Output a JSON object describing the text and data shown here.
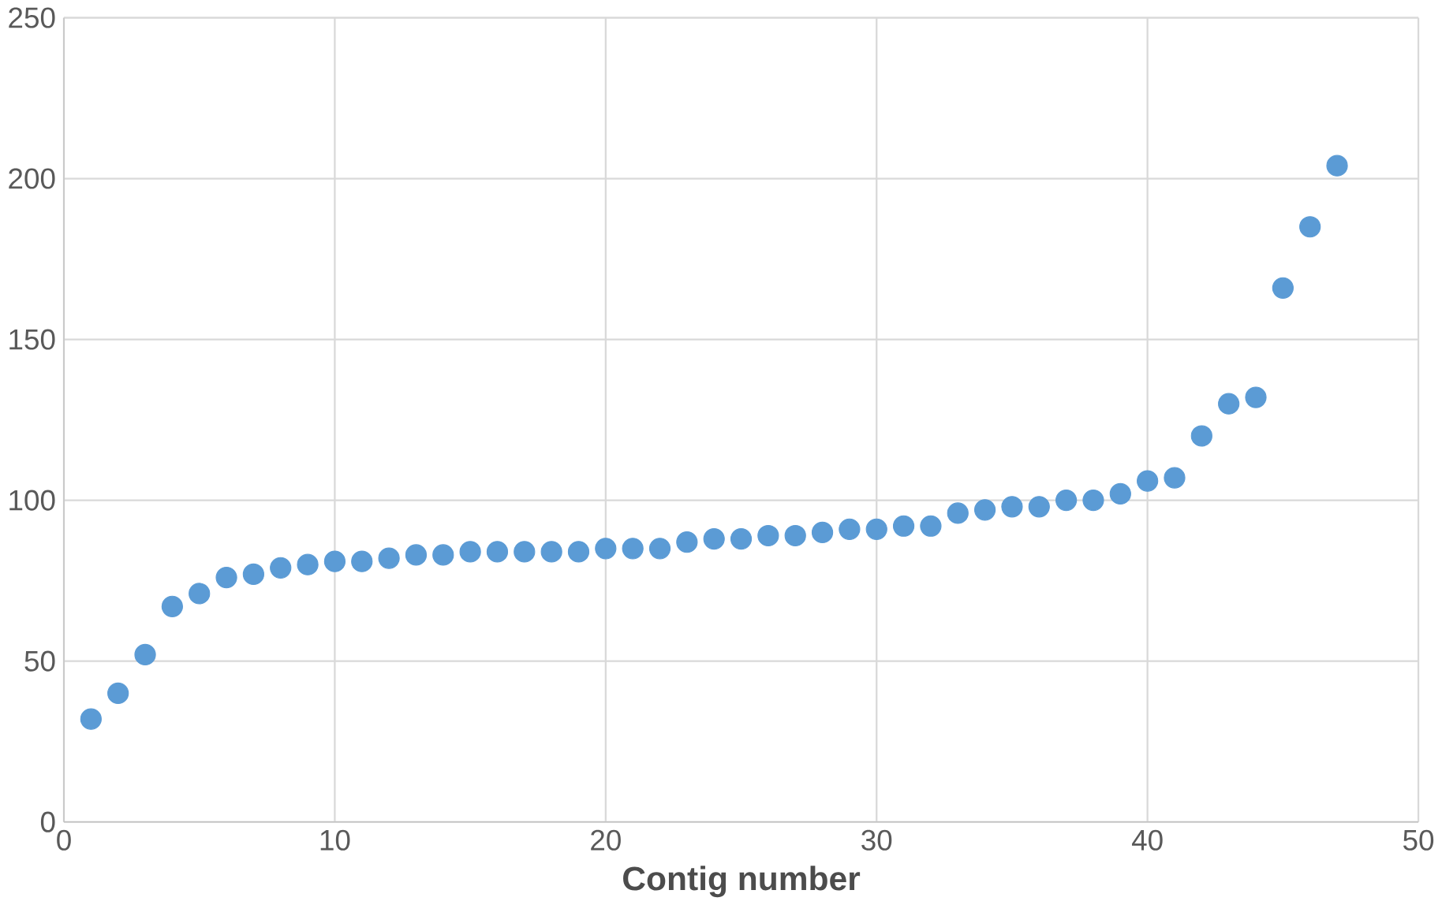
{
  "chart_data": {
    "type": "scatter",
    "xlabel": "**Contig number**",
    "x": [
      1,
      2,
      3,
      4,
      5,
      6,
      7,
      8,
      9,
      10,
      11,
      12,
      13,
      14,
      15,
      16,
      17,
      18,
      19,
      20,
      21,
      22,
      23,
      24,
      25,
      26,
      27,
      28,
      29,
      30,
      31,
      32,
      33,
      34,
      35,
      36,
      37,
      38,
      39,
      40,
      41,
      42,
      43,
      44,
      45,
      46,
      47
    ],
    "series": [
      {
        "color": "#5b9bd5",
        "values": [
          32,
          40,
          52,
          67,
          71,
          76,
          77,
          79,
          80,
          81,
          81,
          82,
          83,
          83,
          84,
          84,
          84,
          84,
          84,
          85,
          85,
          85,
          87,
          88,
          88,
          89,
          89,
          90,
          91,
          91,
          92,
          92,
          96,
          97,
          98,
          98,
          100,
          100,
          102,
          106,
          107,
          120,
          130,
          132,
          166,
          185,
          204
        ]
      }
    ],
    "xlim": [
      0,
      50
    ],
    "ylim": [
      0,
      250
    ],
    "xticks": [
      0,
      10,
      20,
      30,
      40,
      50
    ],
    "yticks": [
      0,
      50,
      100,
      150,
      200,
      250
    ],
    "grid": true
  }
}
